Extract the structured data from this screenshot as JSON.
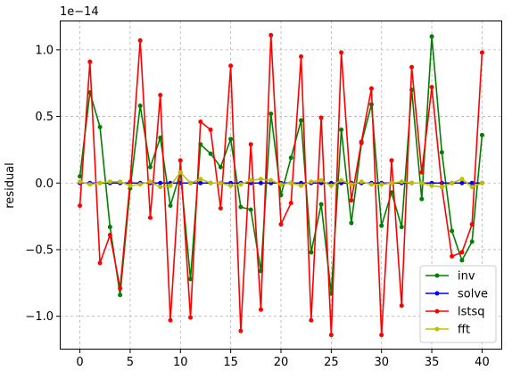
{
  "chart_data": {
    "type": "line",
    "title": "",
    "xlabel": "",
    "ylabel": "residual",
    "y_scale_label": "1e−14",
    "xlim": [
      -2,
      42
    ],
    "ylim": [
      -1.25,
      1.22
    ],
    "x_ticks": [
      0,
      5,
      10,
      15,
      20,
      25,
      30,
      35,
      40
    ],
    "x_tick_labels": [
      "0",
      "5",
      "10",
      "15",
      "20",
      "25",
      "30",
      "35",
      "40"
    ],
    "y_ticks": [
      -1.0,
      -0.5,
      0.0,
      0.5,
      1.0
    ],
    "y_tick_labels": [
      "−1.0",
      "−0.5",
      "0.0",
      "0.5",
      "1.0"
    ],
    "grid": true,
    "legend_position": "lower-right",
    "x": [
      0,
      1,
      2,
      3,
      4,
      5,
      6,
      7,
      8,
      9,
      10,
      11,
      12,
      13,
      14,
      15,
      16,
      17,
      18,
      19,
      20,
      21,
      22,
      23,
      24,
      25,
      26,
      27,
      28,
      29,
      30,
      31,
      32,
      33,
      34,
      35,
      36,
      37,
      38,
      39,
      40
    ],
    "series": [
      {
        "name": "inv",
        "color": "#008000",
        "values": [
          0.05,
          0.68,
          0.42,
          -0.33,
          -0.84,
          -0.04,
          0.58,
          0.12,
          0.34,
          -0.17,
          0.08,
          -0.72,
          0.29,
          0.22,
          0.12,
          0.33,
          -0.18,
          -0.2,
          -0.66,
          0.52,
          -0.09,
          0.19,
          0.47,
          -0.52,
          -0.16,
          -0.83,
          0.4,
          -0.3,
          0.3,
          0.59,
          -0.32,
          -0.07,
          -0.33,
          0.7,
          -0.12,
          1.1,
          0.23,
          -0.36,
          -0.58,
          -0.44,
          0.36
        ]
      },
      {
        "name": "solve",
        "color": "#0000ff",
        "values": [
          0,
          0,
          0,
          0,
          0,
          0,
          0,
          0,
          0,
          0,
          0,
          0,
          0,
          0,
          0,
          0,
          0,
          0,
          0,
          0,
          0,
          0,
          0,
          0,
          0,
          0,
          0,
          0,
          0,
          0,
          0,
          0,
          0,
          0,
          0,
          0,
          0,
          0,
          0,
          0,
          0
        ]
      },
      {
        "name": "lstsq",
        "color": "#ff0000",
        "values": [
          -0.17,
          0.91,
          -0.6,
          -0.39,
          -0.79,
          0.01,
          1.07,
          -0.26,
          0.66,
          -1.03,
          0.17,
          -1.01,
          0.46,
          0.4,
          -0.19,
          0.88,
          -1.11,
          0.29,
          -0.95,
          1.11,
          -0.31,
          -0.15,
          0.95,
          -1.03,
          0.49,
          -1.14,
          0.98,
          -0.13,
          0.31,
          0.71,
          -1.14,
          0.17,
          -0.92,
          0.87,
          0.08,
          0.72,
          -0.03,
          -0.55,
          -0.52,
          -0.31,
          0.98
        ]
      },
      {
        "name": "fft",
        "color": "#bfbf00",
        "values": [
          0.01,
          -0.01,
          0.0,
          0.01,
          0.01,
          -0.02,
          -0.01,
          0.01,
          -0.03,
          -0.02,
          0.08,
          0.0,
          0.03,
          0.0,
          0.0,
          -0.02,
          -0.01,
          0.02,
          0.03,
          0.02,
          -0.01,
          0.0,
          -0.02,
          0.01,
          0.02,
          -0.02,
          0.02,
          -0.01,
          0.01,
          -0.01,
          -0.01,
          0.0,
          0.01,
          0.0,
          0.0,
          -0.02,
          -0.03,
          0.0,
          0.03,
          -0.03,
          0.0
        ]
      }
    ]
  }
}
